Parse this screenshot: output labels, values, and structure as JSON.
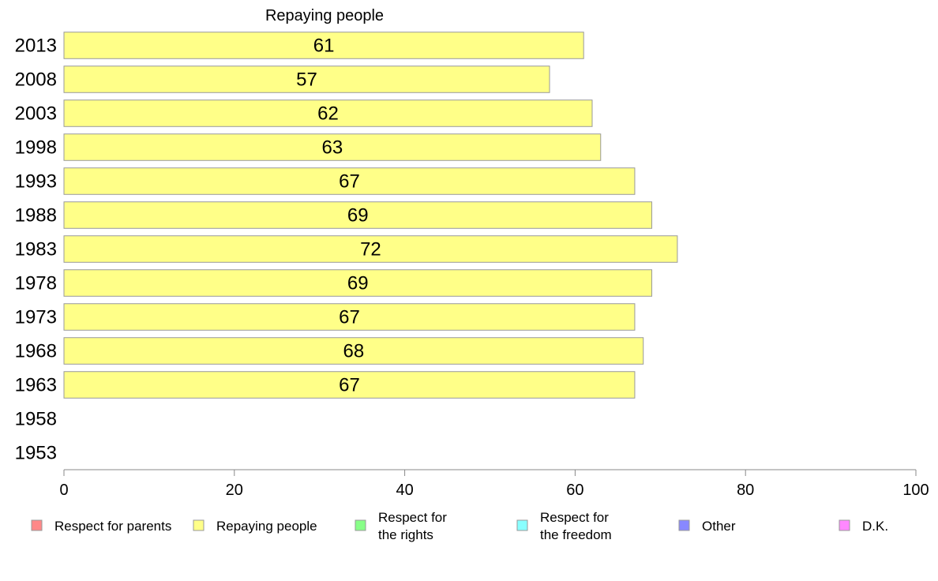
{
  "chart_data": {
    "type": "bar",
    "orientation": "horizontal",
    "title": "Repaying people",
    "categories": [
      "2013",
      "2008",
      "2003",
      "1998",
      "1993",
      "1988",
      "1983",
      "1978",
      "1973",
      "1968",
      "1963",
      "1958",
      "1953"
    ],
    "series": [
      {
        "name": "Repaying people",
        "color": "#ffff88",
        "values": [
          61,
          57,
          62,
          63,
          67,
          69,
          72,
          69,
          67,
          68,
          67,
          null,
          null
        ]
      }
    ],
    "xlim": [
      0,
      100
    ],
    "xticks": [
      0,
      20,
      40,
      60,
      80,
      100
    ],
    "grid": false,
    "legend": {
      "placement": "bottom",
      "items": [
        {
          "lines": [
            "Respect for parents"
          ],
          "color": "#ff8888"
        },
        {
          "lines": [
            "Repaying people"
          ],
          "color": "#ffff88"
        },
        {
          "lines": [
            "Respect for",
            "the rights"
          ],
          "color": "#88ff88"
        },
        {
          "lines": [
            "Respect for",
            "the freedom"
          ],
          "color": "#88ffff"
        },
        {
          "lines": [
            "Other"
          ],
          "color": "#8888ff"
        },
        {
          "lines": [
            "D.K."
          ],
          "color": "#ff88ff"
        }
      ]
    }
  }
}
